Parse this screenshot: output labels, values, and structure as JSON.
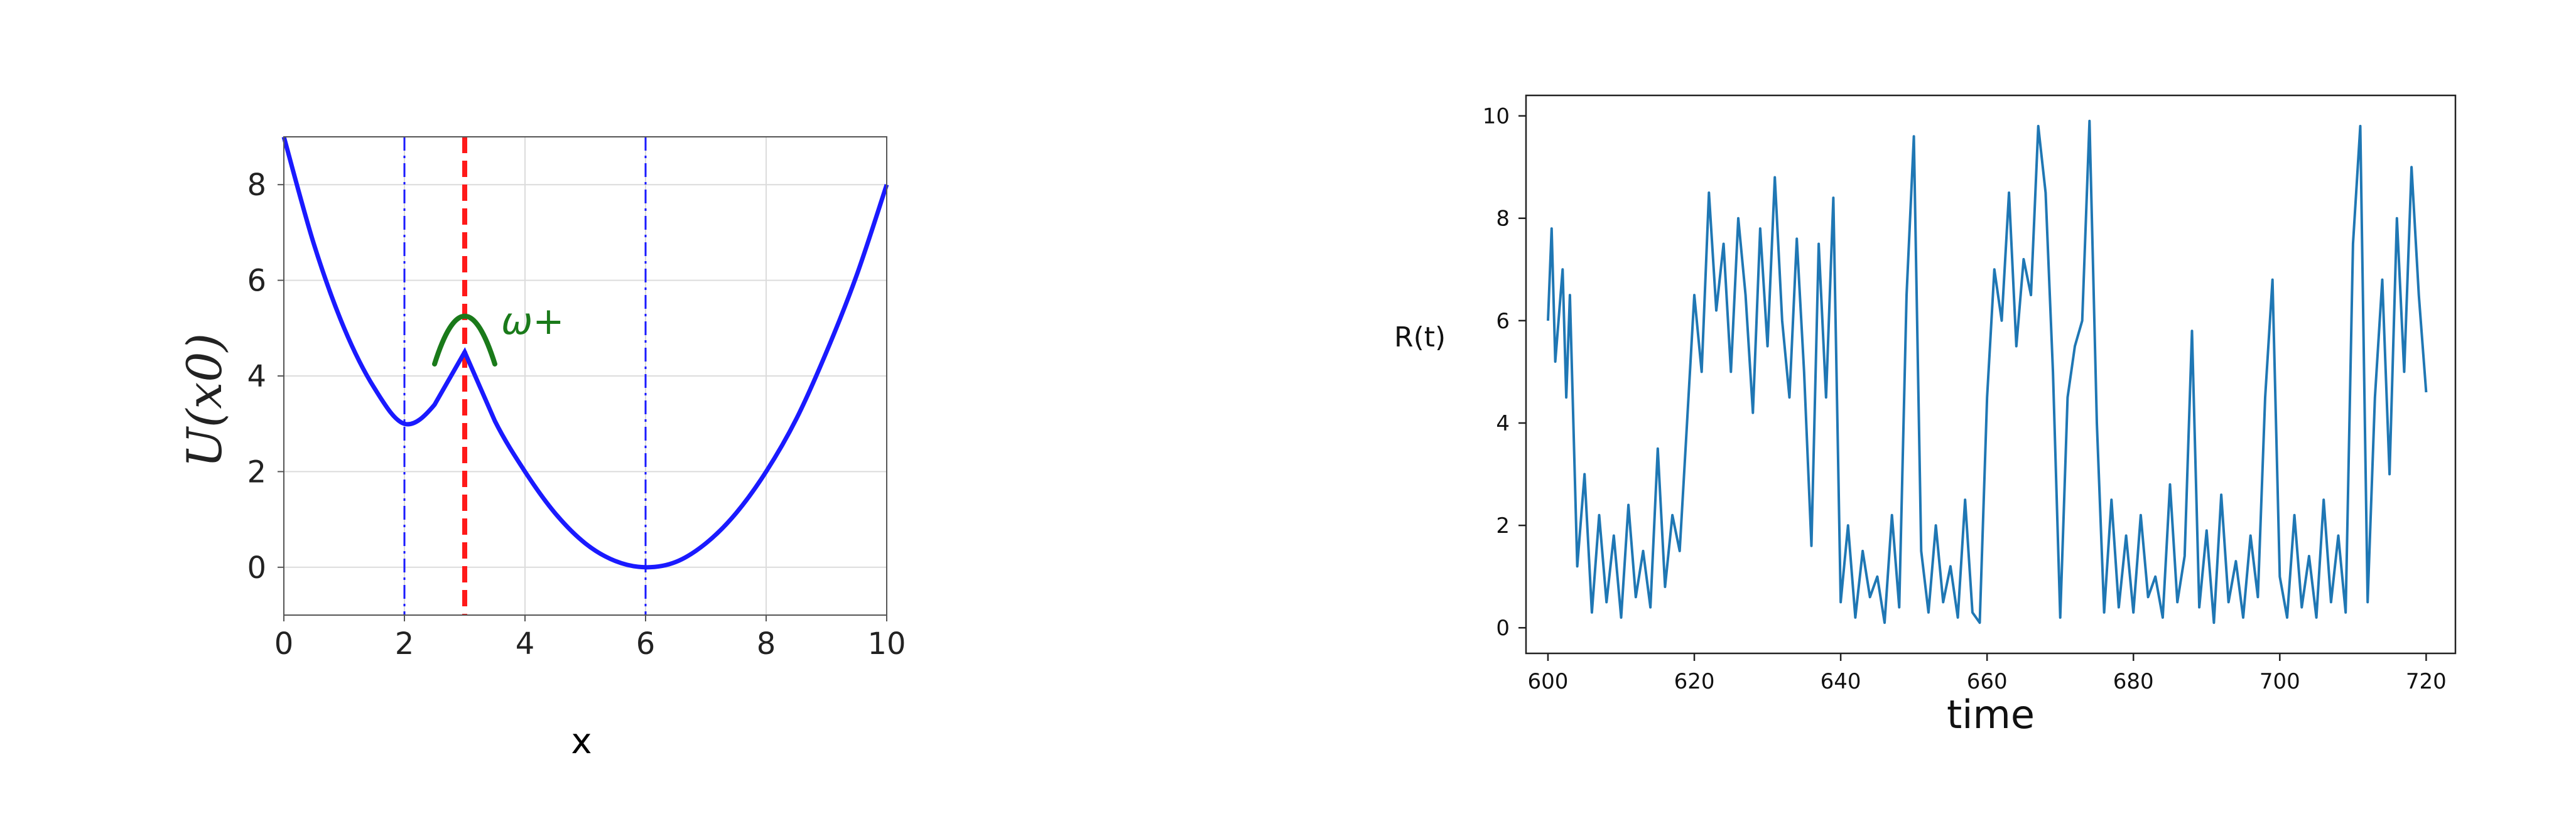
{
  "chart_data": [
    {
      "type": "line",
      "xlabel": "x",
      "ylabel": "U(x0)",
      "xlim": [
        0,
        10
      ],
      "ylim": [
        -1,
        9
      ],
      "x_ticks": [
        0,
        2,
        4,
        6,
        8,
        10
      ],
      "y_ticks": [
        0,
        2,
        4,
        6,
        8
      ],
      "grid": true,
      "series": [
        {
          "color": "#1a1aff",
          "x": [
            0,
            0.5,
            1,
            1.5,
            2,
            2.5,
            3,
            3.5,
            4,
            4.5,
            5,
            5.5,
            6,
            6.5,
            7,
            7.5,
            8,
            8.5,
            9,
            9.5,
            10
          ],
          "y": [
            9,
            6.75,
            5.0,
            3.75,
            3.0,
            3.4,
            4.5,
            3.06,
            2.0,
            1.13,
            0.5,
            0.13,
            0,
            0.11,
            0.5,
            1.13,
            2.0,
            3.1,
            4.5,
            6.1,
            8.0
          ]
        }
      ],
      "vlines": [
        {
          "x": 2,
          "style": "dashdot",
          "color": "#1a1aff"
        },
        {
          "x": 3,
          "style": "dashed",
          "color": "#ff1a1a"
        },
        {
          "x": 6,
          "style": "dashdot",
          "color": "#1a1aff"
        }
      ],
      "annotation": {
        "label": "ω+",
        "color": "#1a7a1a",
        "arc": {
          "x": [
            2.5,
            3.0,
            3.5
          ],
          "y": [
            4.25,
            5.25,
            4.25
          ]
        }
      }
    },
    {
      "type": "line",
      "xlabel": "time",
      "ylabel": "R(t)",
      "xlim": [
        597,
        724
      ],
      "ylim": [
        -0.5,
        10.4
      ],
      "x_ticks": [
        600,
        620,
        640,
        660,
        680,
        700,
        720
      ],
      "y_ticks": [
        0,
        2,
        4,
        6,
        8,
        10
      ],
      "grid": false,
      "series": [
        {
          "color": "#1f77b4",
          "x": [
            600,
            600.5,
            601,
            602,
            602.5,
            603,
            604,
            605,
            606,
            607,
            608,
            609,
            610,
            611,
            612,
            613,
            614,
            615,
            616,
            617,
            618,
            619,
            620,
            621,
            622,
            623,
            624,
            625,
            626,
            627,
            628,
            629,
            630,
            631,
            632,
            633,
            634,
            635,
            636,
            637,
            638,
            639,
            640,
            641,
            642,
            643,
            644,
            645,
            646,
            647,
            648,
            649,
            650,
            651,
            652,
            653,
            654,
            655,
            656,
            657,
            658,
            659,
            660,
            661,
            662,
            663,
            664,
            665,
            666,
            667,
            668,
            669,
            670,
            671,
            672,
            673,
            674,
            675,
            676,
            677,
            678,
            679,
            680,
            681,
            682,
            683,
            684,
            685,
            686,
            687,
            688,
            689,
            690,
            691,
            692,
            693,
            694,
            695,
            696,
            697,
            698,
            699,
            700,
            701,
            702,
            703,
            704,
            705,
            706,
            707,
            708,
            709,
            710,
            711,
            712,
            713,
            714,
            715,
            716,
            717,
            718,
            719,
            720
          ],
          "y": [
            6.0,
            7.8,
            5.2,
            7.0,
            4.5,
            6.5,
            1.2,
            3.0,
            0.3,
            2.2,
            0.5,
            1.8,
            0.2,
            2.4,
            0.6,
            1.5,
            0.4,
            3.5,
            0.8,
            2.2,
            1.5,
            4.0,
            6.5,
            5.0,
            8.5,
            6.2,
            7.5,
            5.0,
            8.0,
            6.5,
            4.2,
            7.8,
            5.5,
            8.8,
            6.0,
            4.5,
            7.6,
            5.0,
            1.6,
            7.5,
            4.5,
            8.4,
            0.5,
            2.0,
            0.2,
            1.5,
            0.6,
            1.0,
            0.1,
            2.2,
            0.4,
            6.5,
            9.6,
            1.5,
            0.3,
            2.0,
            0.5,
            1.2,
            0.2,
            2.5,
            0.3,
            0.1,
            4.5,
            7.0,
            6.0,
            8.5,
            5.5,
            7.2,
            6.5,
            9.8,
            8.5,
            5.0,
            0.2,
            4.5,
            5.5,
            6.0,
            9.9,
            4.0,
            0.3,
            2.5,
            0.4,
            1.8,
            0.3,
            2.2,
            0.6,
            1.0,
            0.2,
            2.8,
            0.5,
            1.4,
            5.8,
            0.4,
            1.9,
            0.1,
            2.6,
            0.5,
            1.3,
            0.2,
            1.8,
            0.6,
            4.5,
            6.8,
            1.0,
            0.2,
            2.2,
            0.4,
            1.4,
            0.2,
            2.5,
            0.5,
            1.8,
            0.3,
            7.5,
            9.8,
            0.5,
            4.5,
            6.8,
            3.0,
            8.0,
            5.0,
            9.0,
            6.5,
            4.6
          ]
        }
      ]
    }
  ]
}
